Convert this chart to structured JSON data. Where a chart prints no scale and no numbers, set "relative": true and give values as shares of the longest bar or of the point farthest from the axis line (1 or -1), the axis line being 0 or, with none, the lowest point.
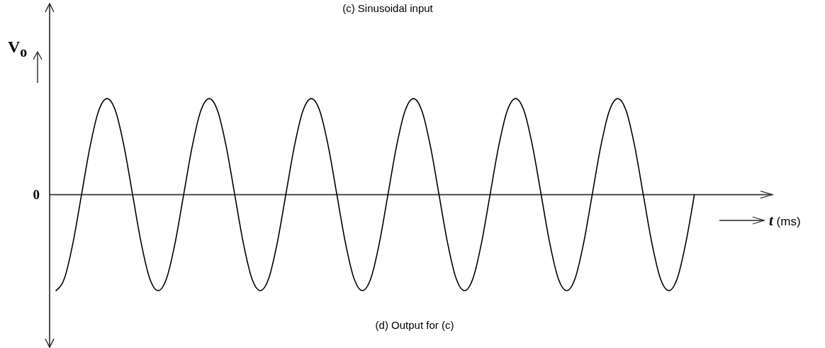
{
  "chart_data": {
    "type": "line",
    "title": "(c) Sinusoidal input",
    "xlabel": "t (ms)",
    "ylabel": "V$_{o}$",
    "annotations": [
      "(d) Output for (c)"
    ],
    "relative": true,
    "color": "#000000",
    "categories": [
      null,
      null,
      null,
      null,
      null,
      null,
      null,
      null,
      null,
      null,
      null,
      null,
      null,
      null,
      null,
      null,
      null,
      null,
      null,
      null,
      null,
      null,
      null,
      null,
      null,
      null,
      null,
      null,
      null,
      null,
      null,
      null,
      null,
      null,
      null,
      null,
      null,
      null,
      null,
      null,
      null,
      null,
      null,
      null,
      null,
      null,
      null,
      null,
      null,
      null,
      null,
      null,
      null,
      null,
      null,
      null,
      null,
      null,
      null,
      null,
      null,
      null,
      null,
      null,
      null,
      null,
      null,
      null,
      null,
      null,
      null,
      null,
      null,
      null,
      null,
      null
    ],
    "values": [
      -1,
      -0.87,
      -0.5,
      0,
      0.5,
      0.87,
      1,
      0.87,
      0.5,
      0,
      -0.5,
      -0.87,
      -1,
      -0.87,
      -0.5,
      0,
      0.5,
      0.87,
      1,
      0.87,
      0.5,
      0,
      -0.5,
      -0.87,
      -1,
      -0.87,
      -0.5,
      0,
      0.5,
      0.87,
      1,
      0.87,
      0.5,
      0,
      -0.5,
      -0.87,
      -1,
      -0.87,
      -0.5,
      0,
      0.5,
      0.87,
      1,
      0.87,
      0.5,
      0,
      -0.5,
      -0.87,
      -1,
      -0.87,
      -0.5,
      0,
      0.5,
      0.87,
      1,
      0.87,
      0.5,
      0,
      -0.5,
      -0.87,
      -1,
      -0.87,
      -0.5,
      0,
      0.5,
      0.87,
      1,
      0.87,
      0.5,
      0,
      -0.5,
      -0.87,
      -1,
      -0.87,
      -0.5,
      0
    ],
    "ref_lines": [
      {
        "axis": "y",
        "value": 0,
        "label": "0",
        "color": "#333333"
      }
    ]
  }
}
